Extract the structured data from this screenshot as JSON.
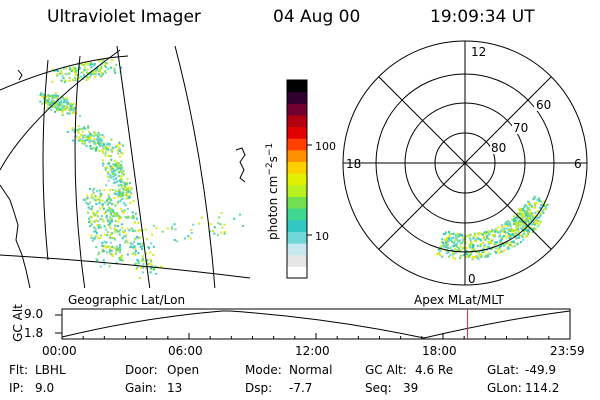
{
  "header": {
    "instrument": "Ultraviolet Imager",
    "date": "04 Aug 00",
    "time": "19:09:34 UT"
  },
  "colorbar": {
    "label": "photon cm",
    "label_exp": "−2",
    "label_unit": "s",
    "label_exp2": "−1",
    "ticks": [
      "100",
      "10"
    ],
    "colors": [
      "#ffffff",
      "#e6e6e6",
      "#c8e8f0",
      "#70d8d8",
      "#30c8c0",
      "#40d890",
      "#70e050",
      "#b8f020",
      "#e0f000",
      "#ffd000",
      "#ff9000",
      "#ff4000",
      "#e00000",
      "#b00010",
      "#700030",
      "#300030",
      "#000000"
    ]
  },
  "map_left": {
    "label": "Geographic Lat/Lon",
    "aurora_colors": [
      "#70d8d8",
      "#50d0a0",
      "#80e060",
      "#c0f020",
      "#e8e800",
      "#30c8c0"
    ]
  },
  "polar_plot": {
    "label": "Apex MLat/MLT",
    "mlt_labels": [
      "12",
      "18",
      "6",
      "0"
    ],
    "lat_labels": [
      "60",
      "70",
      "80"
    ]
  },
  "timeline": {
    "axis_label": "GC Alt",
    "y_ticks": [
      "9.0",
      "1.8"
    ],
    "x_ticks": [
      "00:00",
      "06:00",
      "12:00",
      "18:00",
      "23:59"
    ],
    "marker_color": "#d03030",
    "marker_time_hours": 19.16
  },
  "info": {
    "flt_label": "Flt:",
    "flt_value": "LBHL",
    "ip_label": "IP:",
    "ip_value": "9.0",
    "door_label": "Door:",
    "door_value": "Open",
    "gain_label": "Gain:",
    "gain_value": "13",
    "mode_label": "Mode:",
    "mode_value": "Normal",
    "dsp_label": "Dsp:",
    "dsp_value": "-7.7",
    "gcalt_label": "GC Alt:",
    "gcalt_value": "4.6 Re",
    "seq_label": "Seq:",
    "seq_value": "39",
    "glat_label": "GLat:",
    "glat_value": "-49.9",
    "glon_label": "GLon:",
    "glon_value": "114.2"
  }
}
